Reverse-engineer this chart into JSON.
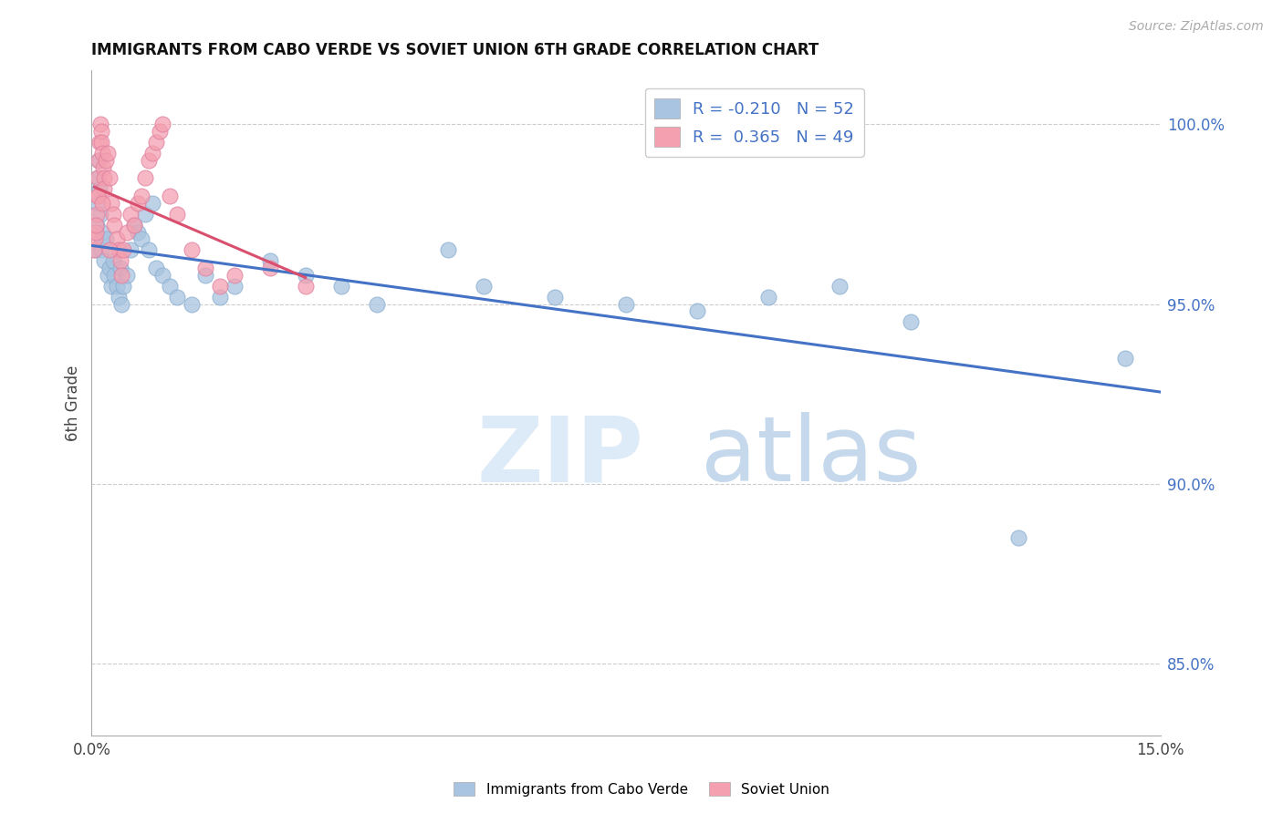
{
  "title": "IMMIGRANTS FROM CABO VERDE VS SOVIET UNION 6TH GRADE CORRELATION CHART",
  "source": "Source: ZipAtlas.com",
  "ylabel": "6th Grade",
  "xlim": [
    0.0,
    15.0
  ],
  "ylim": [
    83.0,
    101.5
  ],
  "cabo_verde_R": -0.21,
  "cabo_verde_N": 52,
  "soviet_union_R": 0.365,
  "soviet_union_N": 49,
  "cabo_verde_color": "#a8c4e0",
  "soviet_union_color": "#f4a0b0",
  "trend_cabo_verde_color": "#4472c4",
  "trend_soviet_union_color": "#d94f6e",
  "legend_label_cabo": "Immigrants from Cabo Verde",
  "legend_label_soviet": "Soviet Union",
  "cabo_verde_x": [
    0.05,
    0.07,
    0.08,
    0.09,
    0.1,
    0.11,
    0.12,
    0.13,
    0.14,
    0.15,
    0.18,
    0.2,
    0.22,
    0.25,
    0.28,
    0.3,
    0.32,
    0.35,
    0.38,
    0.4,
    0.42,
    0.45,
    0.5,
    0.55,
    0.6,
    0.65,
    0.7,
    0.75,
    0.8,
    0.85,
    0.9,
    1.0,
    1.1,
    1.2,
    1.4,
    1.6,
    1.8,
    2.0,
    2.5,
    3.0,
    3.5,
    4.0,
    5.0,
    5.5,
    6.5,
    7.5,
    8.5,
    9.5,
    10.5,
    11.5,
    13.0,
    14.5
  ],
  "cabo_verde_y": [
    96.5,
    97.2,
    97.8,
    98.5,
    99.0,
    98.2,
    97.5,
    96.8,
    96.5,
    97.0,
    96.2,
    96.8,
    95.8,
    96.0,
    95.5,
    96.2,
    95.8,
    95.5,
    95.2,
    96.0,
    95.0,
    95.5,
    95.8,
    96.5,
    97.2,
    97.0,
    96.8,
    97.5,
    96.5,
    97.8,
    96.0,
    95.8,
    95.5,
    95.2,
    95.0,
    95.8,
    95.2,
    95.5,
    96.2,
    95.8,
    95.5,
    95.0,
    96.5,
    95.5,
    95.2,
    95.0,
    94.8,
    95.2,
    95.5,
    94.5,
    88.5,
    93.5
  ],
  "soviet_x": [
    0.04,
    0.05,
    0.06,
    0.07,
    0.08,
    0.09,
    0.1,
    0.11,
    0.12,
    0.13,
    0.14,
    0.15,
    0.16,
    0.17,
    0.18,
    0.2,
    0.22,
    0.25,
    0.28,
    0.3,
    0.32,
    0.35,
    0.38,
    0.4,
    0.42,
    0.45,
    0.5,
    0.55,
    0.6,
    0.65,
    0.7,
    0.75,
    0.8,
    0.85,
    0.9,
    0.95,
    1.0,
    1.1,
    1.2,
    1.4,
    1.6,
    1.8,
    2.0,
    2.5,
    3.0,
    0.06,
    0.09,
    0.15,
    0.25
  ],
  "soviet_y": [
    96.5,
    96.8,
    97.0,
    97.5,
    98.0,
    98.5,
    99.0,
    99.5,
    100.0,
    99.8,
    99.5,
    99.2,
    98.8,
    98.5,
    98.2,
    99.0,
    99.2,
    98.5,
    97.8,
    97.5,
    97.2,
    96.8,
    96.5,
    96.2,
    95.8,
    96.5,
    97.0,
    97.5,
    97.2,
    97.8,
    98.0,
    98.5,
    99.0,
    99.2,
    99.5,
    99.8,
    100.0,
    98.0,
    97.5,
    96.5,
    96.0,
    95.5,
    95.8,
    96.0,
    95.5,
    97.2,
    98.0,
    97.8,
    96.5
  ],
  "ytick_positions": [
    85.0,
    90.0,
    95.0,
    100.0
  ],
  "ytick_labels": [
    "85.0%",
    "90.0%",
    "95.0%",
    "100.0%"
  ]
}
